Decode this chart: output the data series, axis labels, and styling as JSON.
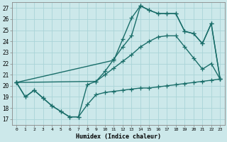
{
  "bg_color": "#cce8ea",
  "grid_color": "#aad4d8",
  "line_color": "#1a6e6a",
  "line_width": 1.0,
  "marker": "+",
  "markersize": 4,
  "markeredgewidth": 0.9,
  "xlabel": "Humidex (Indice chaleur)",
  "ylabel_ticks": [
    17,
    18,
    19,
    20,
    21,
    22,
    23,
    24,
    25,
    26,
    27
  ],
  "xlim": [
    -0.5,
    23.5
  ],
  "ylim": [
    16.5,
    27.5
  ],
  "series_min_x": [
    0,
    1,
    2,
    3,
    4,
    5,
    6,
    7,
    8,
    9,
    10,
    11,
    12,
    13,
    14,
    15,
    16,
    17,
    18,
    19,
    20,
    21,
    22,
    23
  ],
  "series_min_y": [
    20.3,
    19.0,
    19.6,
    18.9,
    18.2,
    17.7,
    17.2,
    17.2,
    18.3,
    19.2,
    19.4,
    19.5,
    19.6,
    19.7,
    19.8,
    19.8,
    19.9,
    20.0,
    20.1,
    20.2,
    20.3,
    20.4,
    20.5,
    20.6
  ],
  "series_low_x": [
    0,
    1,
    2,
    3,
    4,
    5,
    6,
    7,
    8,
    9,
    10,
    11,
    12,
    13,
    14,
    15,
    16,
    17,
    18,
    19,
    20,
    21,
    22,
    23
  ],
  "series_low_y": [
    20.3,
    19.0,
    19.6,
    18.9,
    18.2,
    17.7,
    17.2,
    17.2,
    20.1,
    20.4,
    21.0,
    21.6,
    22.2,
    22.8,
    23.5,
    24.0,
    24.4,
    24.5,
    24.5,
    23.5,
    22.5,
    21.5,
    22.0,
    20.6
  ],
  "series_mid_x": [
    0,
    9,
    10,
    11,
    12,
    13,
    14,
    15,
    16,
    17,
    18,
    19,
    20,
    21,
    22,
    23
  ],
  "series_mid_y": [
    20.3,
    20.4,
    21.3,
    22.4,
    23.5,
    24.5,
    27.2,
    26.8,
    26.5,
    26.5,
    26.5,
    24.9,
    24.7,
    23.8,
    25.6,
    20.6
  ],
  "series_top_x": [
    0,
    11,
    12,
    13,
    14,
    15,
    16,
    17,
    18,
    19,
    20,
    21,
    22,
    23
  ],
  "series_top_y": [
    20.3,
    22.3,
    24.2,
    26.1,
    27.2,
    26.8,
    26.5,
    26.5,
    26.5,
    24.9,
    24.7,
    23.8,
    25.6,
    20.6
  ]
}
